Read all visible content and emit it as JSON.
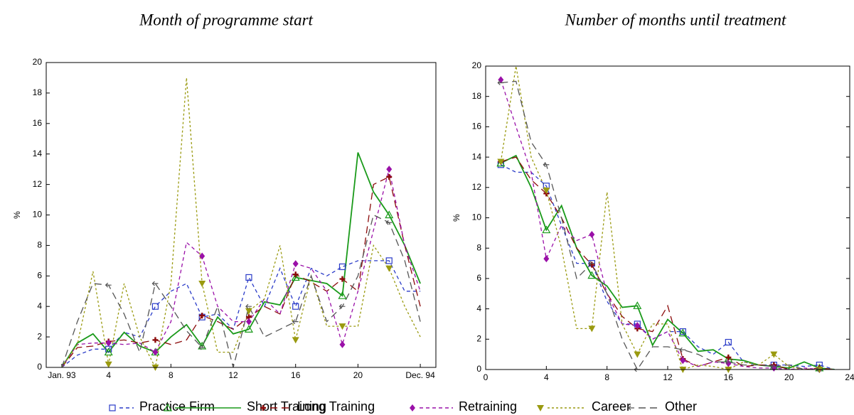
{
  "chart_data": [
    {
      "type": "line",
      "title": "Month of programme start",
      "y_label": "%",
      "x": [
        1,
        2,
        3,
        4,
        5,
        6,
        7,
        8,
        9,
        10,
        11,
        12,
        13,
        14,
        15,
        16,
        17,
        18,
        19,
        20,
        21,
        22,
        23,
        24
      ],
      "xlim": [
        0,
        25
      ],
      "xticks": [
        {
          "value": 1,
          "label": "Jan. 93"
        },
        4,
        8,
        12,
        16,
        20,
        {
          "value": 24,
          "label": "Dec. 94"
        }
      ],
      "ylim": [
        0,
        20
      ],
      "yticks": [
        0,
        2,
        4,
        6,
        8,
        10,
        12,
        14,
        16,
        18,
        20
      ],
      "series": [
        {
          "name": "Practice Firm",
          "color": "#2a3bc8",
          "style": "dashed",
          "marker": "square",
          "values": [
            0,
            0.8,
            1.2,
            1.2,
            2.3,
            2,
            4,
            5,
            5.5,
            3.3,
            3.5,
            2.5,
            5.9,
            4,
            6.5,
            4,
            6.5,
            6,
            6.6,
            7,
            7,
            7,
            5,
            5
          ]
        },
        {
          "name": "Short Training",
          "color": "#1a9a1a",
          "style": "solid",
          "marker": "triangle",
          "values": [
            0,
            1.6,
            2.2,
            1,
            2.3,
            1.4,
            1,
            2,
            2.8,
            1.4,
            3.3,
            2.2,
            2.5,
            4.3,
            4.1,
            5.9,
            5.7,
            5.5,
            4.7,
            14.1,
            11.5,
            10,
            8,
            5.5
          ]
        },
        {
          "name": "Long Training",
          "color": "#8b0a0a",
          "style": "longdash",
          "marker": "plus",
          "values": [
            0,
            1.3,
            1.4,
            1.7,
            1.8,
            1.6,
            1.8,
            1.5,
            1.8,
            3.4,
            3,
            2.5,
            3.3,
            4,
            3.5,
            6.1,
            5.6,
            5,
            5.8,
            5,
            12,
            12.5,
            8,
            4
          ]
        },
        {
          "name": "Retraining",
          "color": "#9a10a8",
          "style": "dashed",
          "marker": "diamond",
          "values": [
            0,
            1.5,
            1.6,
            1.6,
            1.5,
            1.6,
            1,
            3,
            8.2,
            7.3,
            4,
            3,
            3,
            4.5,
            3.5,
            6.8,
            6.5,
            5,
            1.5,
            5,
            9,
            13,
            8,
            5
          ]
        },
        {
          "name": "Career",
          "color": "#9a9a10",
          "style": "dotted",
          "marker": "tridown",
          "values": [
            0,
            1.5,
            6.3,
            0.2,
            5.5,
            2,
            0,
            5.5,
            19,
            5.5,
            1,
            1,
            3.7,
            4.5,
            8,
            1.8,
            6,
            2.7,
            2.7,
            2.7,
            8,
            6.5,
            4,
            2
          ]
        },
        {
          "name": "Other",
          "color": "#555555",
          "style": "longdash",
          "marker": "arrow",
          "values": [
            0,
            3,
            5.5,
            5.4,
            3.5,
            1,
            5.5,
            4,
            2.4,
            1.3,
            4,
            0,
            4,
            2,
            2.5,
            3,
            6,
            3,
            4,
            6,
            10,
            9.5,
            7,
            3
          ]
        }
      ]
    },
    {
      "type": "line",
      "title": "Number of months until treatment",
      "y_label": "%",
      "x": [
        1,
        2,
        3,
        4,
        5,
        6,
        7,
        8,
        9,
        10,
        11,
        12,
        13,
        14,
        15,
        16,
        17,
        18,
        19,
        20,
        21,
        22,
        23
      ],
      "xlim": [
        0,
        24
      ],
      "xticks": [
        0,
        4,
        8,
        12,
        16,
        20,
        24
      ],
      "ylim": [
        0,
        20
      ],
      "yticks": [
        0,
        2,
        4,
        6,
        8,
        10,
        12,
        14,
        16,
        18,
        20
      ],
      "series": [
        {
          "name": "Practice Firm",
          "color": "#2a3bc8",
          "style": "dashed",
          "marker": "square",
          "values": [
            13.5,
            13,
            13,
            12.1,
            9.5,
            7,
            7,
            4.5,
            3,
            3,
            2,
            2.5,
            2.5,
            1.5,
            1,
            1.8,
            0.5,
            0.3,
            0.3,
            0.3,
            0.2,
            0.3,
            0
          ]
        },
        {
          "name": "Short Training",
          "color": "#1a9a1a",
          "style": "solid",
          "marker": "triangle",
          "values": [
            13.6,
            14.1,
            12,
            9.2,
            10.8,
            8,
            6.2,
            5.5,
            4.1,
            4.2,
            1.6,
            3.3,
            2.4,
            1.2,
            1.3,
            0.7,
            0.6,
            0.3,
            0.2,
            0.1,
            0.5,
            0.1,
            0
          ]
        },
        {
          "name": "Long Training",
          "color": "#8b0a0a",
          "style": "longdash",
          "marker": "plus",
          "values": [
            13.7,
            14,
            12.5,
            11.6,
            10,
            8,
            6.9,
            5,
            3.5,
            2.7,
            2.5,
            4.2,
            0.7,
            0.2,
            0.5,
            0.8,
            0.2,
            0.3,
            0.3,
            0,
            0,
            0.1,
            0
          ]
        },
        {
          "name": "Retraining",
          "color": "#9a10a8",
          "style": "dashed",
          "marker": "diamond",
          "values": [
            19.1,
            16,
            13,
            7.3,
            9.5,
            8.5,
            8.9,
            5,
            3,
            2.9,
            2,
            2.5,
            0.6,
            0.2,
            0.5,
            0.4,
            0.2,
            0.1,
            0.1,
            0,
            0.1,
            0,
            0
          ]
        },
        {
          "name": "Career",
          "color": "#9a9a10",
          "style": "dotted",
          "marker": "tridown",
          "values": [
            13.7,
            20,
            14,
            11.8,
            8,
            2.7,
            2.7,
            11.7,
            3,
            1,
            3,
            3,
            0,
            0.3,
            0.2,
            0,
            0.5,
            0.3,
            1,
            0.2,
            0,
            0,
            0
          ]
        },
        {
          "name": "Other",
          "color": "#555555",
          "style": "longdash",
          "marker": "arrow",
          "values": [
            18.9,
            19,
            15,
            13.5,
            10,
            6,
            7,
            5,
            2,
            0,
            1.5,
            1.5,
            1.3,
            1,
            0.5,
            0.5,
            0.3,
            0.3,
            0.2,
            0.3,
            0,
            0,
            0
          ]
        }
      ]
    }
  ]
}
